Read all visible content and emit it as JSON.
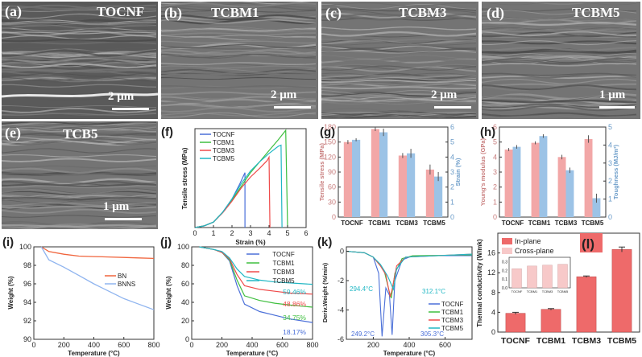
{
  "sem_panels": [
    {
      "label": "(a)",
      "title": "TOCNF",
      "scale": "2 μm"
    },
    {
      "label": "(b)",
      "title": "TCBM1",
      "scale": "2 μm"
    },
    {
      "label": "(c)",
      "title": "TCBM3",
      "scale": "2 μm"
    },
    {
      "label": "(d)",
      "title": "TCBM5",
      "scale": "1 μm"
    },
    {
      "label": "(e)",
      "title": "TCB5",
      "scale": "1 μm"
    }
  ],
  "colors": {
    "TOCNF": "#4a6fd8",
    "TCBM1": "#3fbf3f",
    "TCBM3": "#ef4a4a",
    "TCBM5": "#21b7c4",
    "BN": "#f0643c",
    "BNNS": "#8fb4ef",
    "bar_pink": "#f2a7a7",
    "bar_blue": "#9cc3e6",
    "bar_red": "#ee6a6a",
    "bar_lightpink": "#f7c9c9",
    "axis_pink": "#c87d7d",
    "axis_blue": "#6a9bc8"
  },
  "chart_data": [
    {
      "id": "f",
      "label": "(f)",
      "type": "line",
      "xlabel": "Strain (%)",
      "ylabel": "Tensile stress (MPa)",
      "xlim": [
        0,
        6
      ],
      "ylim": [
        0,
        180
      ],
      "xticks": [
        "0",
        "1",
        "2",
        "3",
        "4",
        "5",
        "6"
      ],
      "legend_position": "top-left",
      "series": [
        {
          "name": "TOCNF",
          "points": [
            [
              0,
              0
            ],
            [
              0.5,
              3
            ],
            [
              1,
              10
            ],
            [
              1.5,
              28
            ],
            [
              2,
              52
            ],
            [
              2.4,
              78
            ],
            [
              2.7,
              100
            ],
            [
              2.7,
              0
            ]
          ]
        },
        {
          "name": "TCBM1",
          "points": [
            [
              0,
              0
            ],
            [
              0.5,
              3
            ],
            [
              1,
              10
            ],
            [
              1.5,
              28
            ],
            [
              2,
              50
            ],
            [
              2.5,
              75
            ],
            [
              3,
              100
            ],
            [
              3.5,
              120
            ],
            [
              4,
              140
            ],
            [
              4.5,
              160
            ],
            [
              4.9,
              177
            ],
            [
              5.0,
              0
            ]
          ]
        },
        {
          "name": "TCBM3",
          "points": [
            [
              0,
              0
            ],
            [
              0.5,
              3
            ],
            [
              1,
              10
            ],
            [
              1.5,
              27
            ],
            [
              2,
              48
            ],
            [
              2.5,
              72
            ],
            [
              3,
              92
            ],
            [
              3.5,
              108
            ],
            [
              3.9,
              122
            ],
            [
              4.0,
              128
            ],
            [
              4.05,
              0
            ]
          ]
        },
        {
          "name": "TCBM5",
          "points": [
            [
              0,
              0
            ],
            [
              0.5,
              3
            ],
            [
              1,
              10
            ],
            [
              1.5,
              28
            ],
            [
              2,
              52
            ],
            [
              2.5,
              80
            ],
            [
              3,
              103
            ],
            [
              3.5,
              120
            ],
            [
              4,
              135
            ],
            [
              4.5,
              148
            ],
            [
              4.65,
              150
            ],
            [
              4.7,
              0
            ]
          ]
        }
      ]
    },
    {
      "id": "g",
      "label": "(g)",
      "type": "bar",
      "categories": [
        "TOCNF",
        "TCBM1",
        "TCBM3",
        "TCBM5"
      ],
      "yticks_left": [
        "0",
        "30",
        "60",
        "90",
        "120",
        "150",
        "180"
      ],
      "yticks_right": [
        "0",
        "1",
        "2",
        "3",
        "4",
        "5",
        "6"
      ],
      "ylabel_left": "Tensile stress (MPa)",
      "ylabel_right": "Strain (%)",
      "ylim_left": [
        0,
        180
      ],
      "ylim_right": [
        0,
        6
      ],
      "series": [
        {
          "axis": "left",
          "values": [
            150,
            176,
            123,
            95
          ],
          "errors": [
            4,
            4,
            5,
            10
          ]
        },
        {
          "axis": "right",
          "values": [
            5.15,
            5.65,
            4.25,
            2.7
          ],
          "errors": [
            0.1,
            0.25,
            0.3,
            0.3
          ]
        }
      ]
    },
    {
      "id": "h",
      "label": "(h)",
      "type": "bar",
      "categories": [
        "TOCNF",
        "TCBM1",
        "TCBM3",
        "TCBM5"
      ],
      "yticks_left": [
        "0",
        "1",
        "2",
        "3",
        "4",
        "5",
        "6"
      ],
      "yticks_right": [
        "0",
        "1",
        "2",
        "3",
        "4",
        "5"
      ],
      "ylabel_left": "Young's modulus (GPa)",
      "ylabel_right": "Toughness (MJ/m³)",
      "ylim_left": [
        0,
        6
      ],
      "ylim_right": [
        0,
        5
      ],
      "series": [
        {
          "axis": "left",
          "values": [
            4.5,
            4.95,
            4.0,
            5.2
          ],
          "errors": [
            0.1,
            0.1,
            0.15,
            0.25
          ]
        },
        {
          "axis": "right",
          "values": [
            3.9,
            4.5,
            2.6,
            1.05
          ],
          "errors": [
            0.1,
            0.1,
            0.15,
            0.25
          ]
        }
      ]
    },
    {
      "id": "i",
      "label": "(i)",
      "type": "line",
      "xlabel": "Temperature (°C)",
      "ylabel": "Weight (%)",
      "xlim": [
        0,
        800
      ],
      "ylim": [
        90,
        100
      ],
      "xticks": [
        "0",
        "200",
        "400",
        "600",
        "800"
      ],
      "yticks": [
        "90",
        "92",
        "94",
        "96",
        "98",
        "100"
      ],
      "legend_position": "right",
      "series": [
        {
          "name": "BN",
          "points": [
            [
              50,
              100
            ],
            [
              100,
              99.5
            ],
            [
              200,
              99.2
            ],
            [
              300,
              99.0
            ],
            [
              400,
              98.95
            ],
            [
              500,
              98.9
            ],
            [
              600,
              98.85
            ],
            [
              700,
              98.8
            ],
            [
              800,
              98.75
            ]
          ]
        },
        {
          "name": "BNNS",
          "points": [
            [
              50,
              100
            ],
            [
              100,
              98.6
            ],
            [
              200,
              97.8
            ],
            [
              300,
              96.9
            ],
            [
              400,
              96.0
            ],
            [
              500,
              95.2
            ],
            [
              600,
              94.4
            ],
            [
              700,
              93.8
            ],
            [
              800,
              93.2
            ]
          ]
        }
      ]
    },
    {
      "id": "j",
      "label": "(j)",
      "type": "line",
      "xlabel": "Temperature (°C)",
      "ylabel": "Weight (%)",
      "xlim": [
        0,
        800
      ],
      "ylim": [
        0,
        100
      ],
      "xticks": [
        "0",
        "200",
        "400",
        "600",
        "800"
      ],
      "yticks": [
        "0",
        "20",
        "40",
        "60",
        "80",
        "100"
      ],
      "legend_position": "top-right",
      "annotations": [
        "59.46%",
        "48.86%",
        "34.75%",
        "18.17%"
      ],
      "series": [
        {
          "name": "TOCNF",
          "points": [
            [
              50,
              100
            ],
            [
              150,
              97
            ],
            [
              200,
              94
            ],
            [
              250,
              85
            ],
            [
              300,
              58
            ],
            [
              350,
              38
            ],
            [
              450,
              30
            ],
            [
              550,
              26
            ],
            [
              650,
              22
            ],
            [
              800,
              18.17
            ]
          ]
        },
        {
          "name": "TCBM1",
          "points": [
            [
              50,
              100
            ],
            [
              150,
              97
            ],
            [
              200,
              94
            ],
            [
              250,
              86
            ],
            [
              300,
              64
            ],
            [
              350,
              47
            ],
            [
              450,
              42
            ],
            [
              550,
              39
            ],
            [
              650,
              37
            ],
            [
              800,
              34.75
            ]
          ]
        },
        {
          "name": "TCBM3",
          "points": [
            [
              50,
              100
            ],
            [
              150,
              97
            ],
            [
              200,
              94
            ],
            [
              250,
              87
            ],
            [
              300,
              70
            ],
            [
              350,
              58
            ],
            [
              450,
              54
            ],
            [
              550,
              52
            ],
            [
              650,
              50
            ],
            [
              800,
              48.86
            ]
          ]
        },
        {
          "name": "TCBM5",
          "points": [
            [
              50,
              100
            ],
            [
              150,
              97
            ],
            [
              200,
              95
            ],
            [
              250,
              88
            ],
            [
              300,
              76
            ],
            [
              350,
              68
            ],
            [
              450,
              64
            ],
            [
              550,
              62
            ],
            [
              650,
              61
            ],
            [
              800,
              59.46
            ]
          ]
        }
      ]
    },
    {
      "id": "k",
      "label": "(k)",
      "type": "line",
      "xlabel": "Temperature (°C)",
      "ylabel": "Deriv.Weight (%/min)",
      "xlim": [
        50,
        750
      ],
      "ylim": [
        -6,
        0.3
      ],
      "xticks": [
        "200",
        "400",
        "600"
      ],
      "yticks": [
        "-6",
        "-4",
        "-2",
        "0"
      ],
      "legend_position": "bottom-right",
      "annotations": [
        "294.4°C",
        "312.1°C",
        "249.2°C",
        "305.3°C"
      ],
      "series": [
        {
          "name": "TOCNF",
          "points": [
            [
              50,
              0
            ],
            [
              150,
              -0.1
            ],
            [
              200,
              -0.4
            ],
            [
              230,
              -1.5
            ],
            [
              249,
              -5.8
            ],
            [
              270,
              -2.5
            ],
            [
              290,
              -3.0
            ],
            [
              305,
              -5.7
            ],
            [
              320,
              -2.0
            ],
            [
              360,
              -0.6
            ],
            [
              420,
              -0.3
            ],
            [
              750,
              -0.3
            ]
          ]
        },
        {
          "name": "TCBM1",
          "points": [
            [
              50,
              0
            ],
            [
              150,
              -0.1
            ],
            [
              200,
              -0.4
            ],
            [
              240,
              -1.0
            ],
            [
              260,
              -1.3
            ],
            [
              290,
              -2.8
            ],
            [
              300,
              -3.2
            ],
            [
              320,
              -1.5
            ],
            [
              360,
              -0.5
            ],
            [
              420,
              -0.3
            ],
            [
              750,
              -0.25
            ]
          ]
        },
        {
          "name": "TCBM3",
          "points": [
            [
              50,
              0
            ],
            [
              150,
              -0.1
            ],
            [
              200,
              -0.4
            ],
            [
              240,
              -1.0
            ],
            [
              270,
              -1.6
            ],
            [
              294,
              -3.1
            ],
            [
              305,
              -2.6
            ],
            [
              330,
              -1.0
            ],
            [
              380,
              -0.4
            ],
            [
              750,
              -0.2
            ]
          ]
        },
        {
          "name": "TCBM5",
          "points": [
            [
              50,
              0
            ],
            [
              150,
              -0.1
            ],
            [
              200,
              -0.4
            ],
            [
              240,
              -0.9
            ],
            [
              280,
              -1.7
            ],
            [
              312,
              -2.6
            ],
            [
              330,
              -1.2
            ],
            [
              380,
              -0.4
            ],
            [
              750,
              -0.2
            ]
          ]
        }
      ]
    },
    {
      "id": "l",
      "label": "(l)",
      "type": "bar",
      "categories": [
        "TOCNF",
        "TCBM1",
        "TCBM3",
        "TCBM5"
      ],
      "ylabel": "Thermal conductivity (W/mk)",
      "ylim": [
        0,
        20
      ],
      "yticks": [
        "0",
        "4",
        "8",
        "12",
        "16"
      ],
      "legend": [
        "In-plane",
        "Cross-plane"
      ],
      "series": [
        {
          "name": "In-plane",
          "values": [
            3.8,
            4.6,
            11.2,
            16.7
          ],
          "errors": [
            0.2,
            0.15,
            0.15,
            0.5
          ]
        }
      ],
      "inset": {
        "categories": [
          "TOCNF",
          "TCBM1",
          "TCBM3",
          "TCBM5"
        ],
        "yticks": [
          "0.0",
          "0.1",
          "0.2",
          "0.3"
        ],
        "ylim": [
          0,
          0.35
        ],
        "values": [
          0.22,
          0.25,
          0.26,
          0.27
        ]
      }
    }
  ]
}
